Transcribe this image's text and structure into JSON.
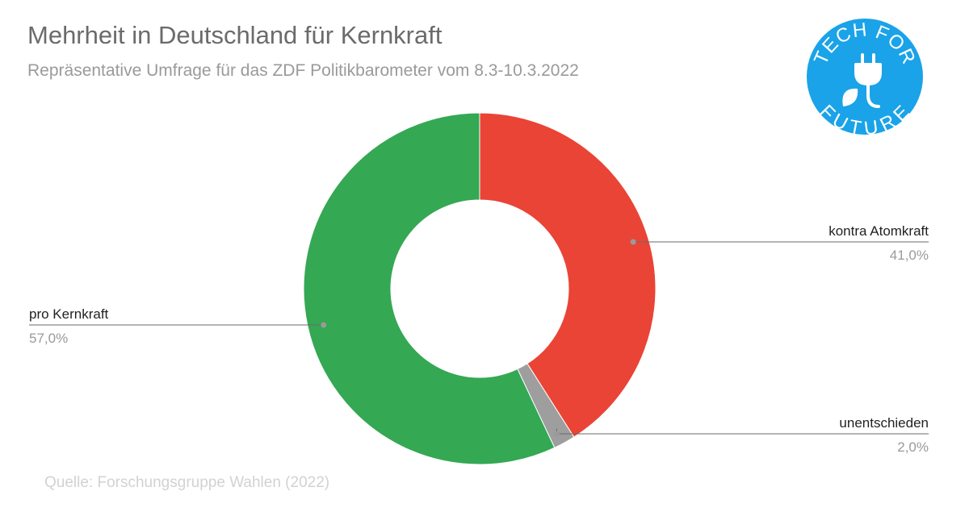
{
  "chart_data": {
    "type": "pie",
    "donut": true,
    "title": "Mehrheit in Deutschland für Kernkraft",
    "subtitle": "Repräsentative Umfrage für das ZDF Politikbarometer vom 8.3-10.3.2022",
    "slices": [
      {
        "label": "kontra Atomkraft",
        "value": 41.0,
        "display": "41,0%",
        "color": "#e94436"
      },
      {
        "label": "unentschieden",
        "value": 2.0,
        "display": "2,0%",
        "color": "#9e9e9e"
      },
      {
        "label": "pro Kernkraft",
        "value": 57.0,
        "display": "57,0%",
        "color": "#34a853"
      }
    ]
  },
  "source": "Quelle: Forschungsgruppe Wahlen (2022)",
  "logo": {
    "top_text": "TECH FOR",
    "bottom_text": "FUTURE",
    "color": "#1aa3e8",
    "icon": "plug-leaf-icon"
  }
}
